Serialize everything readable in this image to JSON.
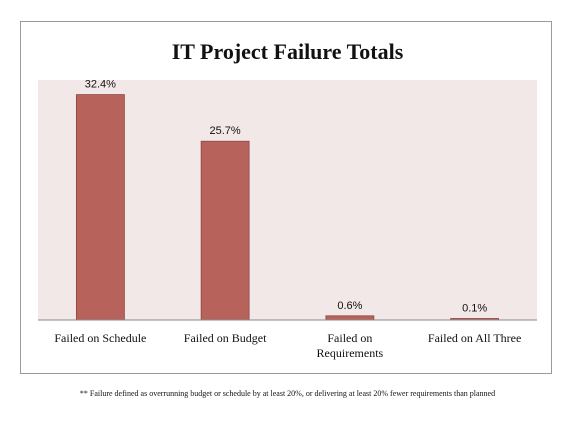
{
  "chart_data": {
    "type": "bar",
    "title": "IT Project Failure Totals",
    "categories": [
      [
        "Failed on Schedule"
      ],
      [
        "Failed on Budget"
      ],
      [
        "Failed on",
        "Requirements"
      ],
      [
        "Failed on All Three"
      ]
    ],
    "values": [
      32.4,
      25.7,
      0.6,
      0.1
    ],
    "value_labels": [
      "32.4%",
      "25.7%",
      "0.6%",
      "0.1%"
    ],
    "xlabel": "",
    "ylabel": "",
    "ylim": [
      0,
      34.5
    ],
    "grid": false,
    "legend": "none",
    "colors": {
      "bar": "#b8625c",
      "bar_stroke": "#8e4440",
      "plot_background": "#f3e8e8",
      "axis": "#8a8a8a"
    }
  },
  "footnote": "** Failure defined as overrunning budget or schedule by at least 20%, or delivering at least 20% fewer requirements than planned"
}
